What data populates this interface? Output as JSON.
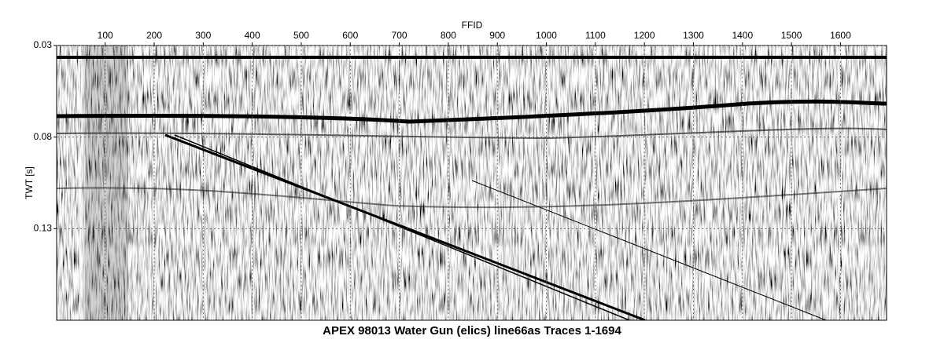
{
  "chart_data": {
    "type": "seismic",
    "title": "APEX 98013 Water Gun (elics) line66as Traces 1-1694",
    "x_label": "FFID",
    "y_label": "TWT [s]",
    "xlim": [
      1,
      1694
    ],
    "xticks": [
      100,
      200,
      300,
      400,
      500,
      600,
      700,
      800,
      900,
      1000,
      1100,
      1200,
      1300,
      1400,
      1500,
      1600
    ],
    "ylim": [
      0.03,
      0.18
    ],
    "yticks": [
      0.03,
      0.08,
      0.13
    ],
    "y_inverted": true,
    "grid": true
  }
}
